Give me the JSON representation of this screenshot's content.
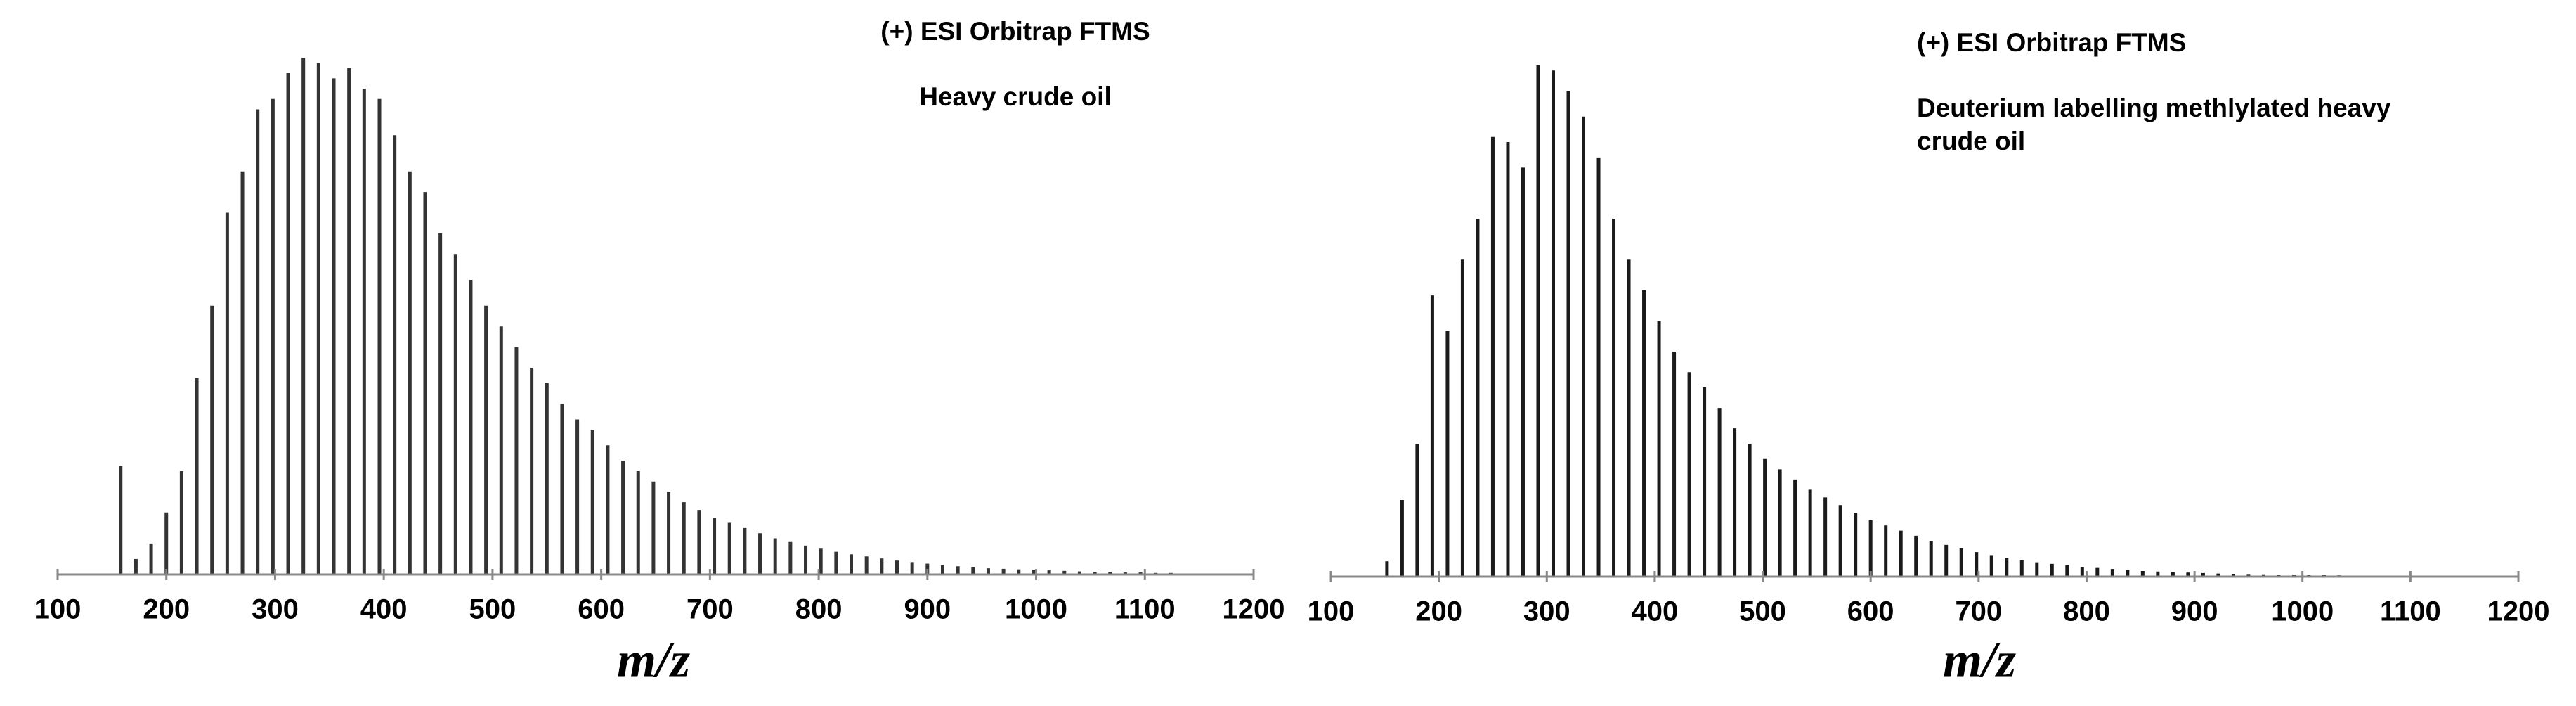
{
  "chart_data": [
    {
      "type": "bar",
      "title": "(+) ESI Orbitrap FTMS",
      "subtitle": [
        "Heavy crude oil"
      ],
      "xlabel": "m/z",
      "color": "#333333",
      "xlim": [
        100,
        1200
      ],
      "xticks": [
        100,
        200,
        300,
        400,
        500,
        600,
        700,
        800,
        900,
        1000,
        1100,
        1200
      ],
      "ylim": [
        0,
        100
      ],
      "x": [
        158,
        172,
        186,
        200,
        214,
        228,
        242,
        256,
        270,
        284,
        298,
        312,
        326,
        340,
        354,
        368,
        382,
        396,
        410,
        424,
        438,
        452,
        466,
        480,
        494,
        508,
        522,
        536,
        550,
        564,
        578,
        592,
        606,
        620,
        634,
        648,
        662,
        676,
        690,
        704,
        718,
        732,
        746,
        760,
        774,
        788,
        802,
        816,
        830,
        844,
        858,
        872,
        886,
        900,
        914,
        928,
        942,
        956,
        970,
        984,
        998,
        1012,
        1026,
        1040,
        1054,
        1068,
        1082,
        1096,
        1110,
        1124
      ],
      "values": [
        21,
        3,
        6,
        12,
        20,
        38,
        52,
        70,
        78,
        90,
        92,
        97,
        100,
        99,
        96,
        98,
        94,
        92,
        85,
        78,
        74,
        66,
        62,
        57,
        52,
        48,
        44,
        40,
        37,
        33,
        30,
        28,
        25,
        22,
        20,
        18,
        16,
        14,
        12.5,
        11,
        10,
        9,
        8,
        7,
        6.3,
        5.6,
        5,
        4.4,
        3.9,
        3.5,
        3.1,
        2.7,
        2.4,
        2.1,
        1.8,
        1.6,
        1.4,
        1.2,
        1.1,
        1,
        0.9,
        0.8,
        0.7,
        0.6,
        0.5,
        0.5,
        0.4,
        0.4,
        0.3,
        0.3
      ]
    },
    {
      "type": "bar",
      "title": "(+) ESI Orbitrap FTMS",
      "subtitle": [
        "Deuterium labelling methlylated  heavy",
        "crude oil"
      ],
      "xlabel": "m/z",
      "color": "#1a1a1a",
      "xlim": [
        100,
        1200
      ],
      "xticks": [
        100,
        200,
        300,
        400,
        500,
        600,
        700,
        800,
        900,
        1000,
        1100,
        1200
      ],
      "ylim": [
        0,
        100
      ],
      "x": [
        152,
        166,
        180,
        194,
        208,
        222,
        236,
        250,
        264,
        278,
        292,
        306,
        320,
        334,
        348,
        362,
        376,
        390,
        404,
        418,
        432,
        446,
        460,
        474,
        488,
        502,
        516,
        530,
        544,
        558,
        572,
        586,
        600,
        614,
        628,
        642,
        656,
        670,
        684,
        698,
        712,
        726,
        740,
        754,
        768,
        782,
        796,
        810,
        824,
        838,
        852,
        866,
        880,
        894,
        908,
        922,
        936,
        950,
        964,
        978,
        992,
        1006,
        1020,
        1034,
        1048,
        1062,
        1076,
        1090,
        1104,
        1118
      ],
      "values": [
        3,
        15,
        26,
        55,
        48,
        62,
        70,
        86,
        85,
        80,
        100,
        99,
        95,
        90,
        82,
        70,
        62,
        56,
        50,
        44,
        40,
        37,
        33,
        29,
        26,
        23,
        21,
        19,
        17,
        15.5,
        14,
        12.5,
        11,
        10,
        9,
        8,
        7,
        6.2,
        5.5,
        4.8,
        4.2,
        3.7,
        3.2,
        2.8,
        2.5,
        2.2,
        1.9,
        1.7,
        1.5,
        1.3,
        1.1,
        1,
        0.9,
        0.8,
        0.7,
        0.6,
        0.55,
        0.5,
        0.45,
        0.4,
        0.35,
        0.3,
        0.3,
        0.25,
        0.2,
        0.2,
        0.15,
        0.15,
        0.1,
        0.1
      ]
    }
  ]
}
